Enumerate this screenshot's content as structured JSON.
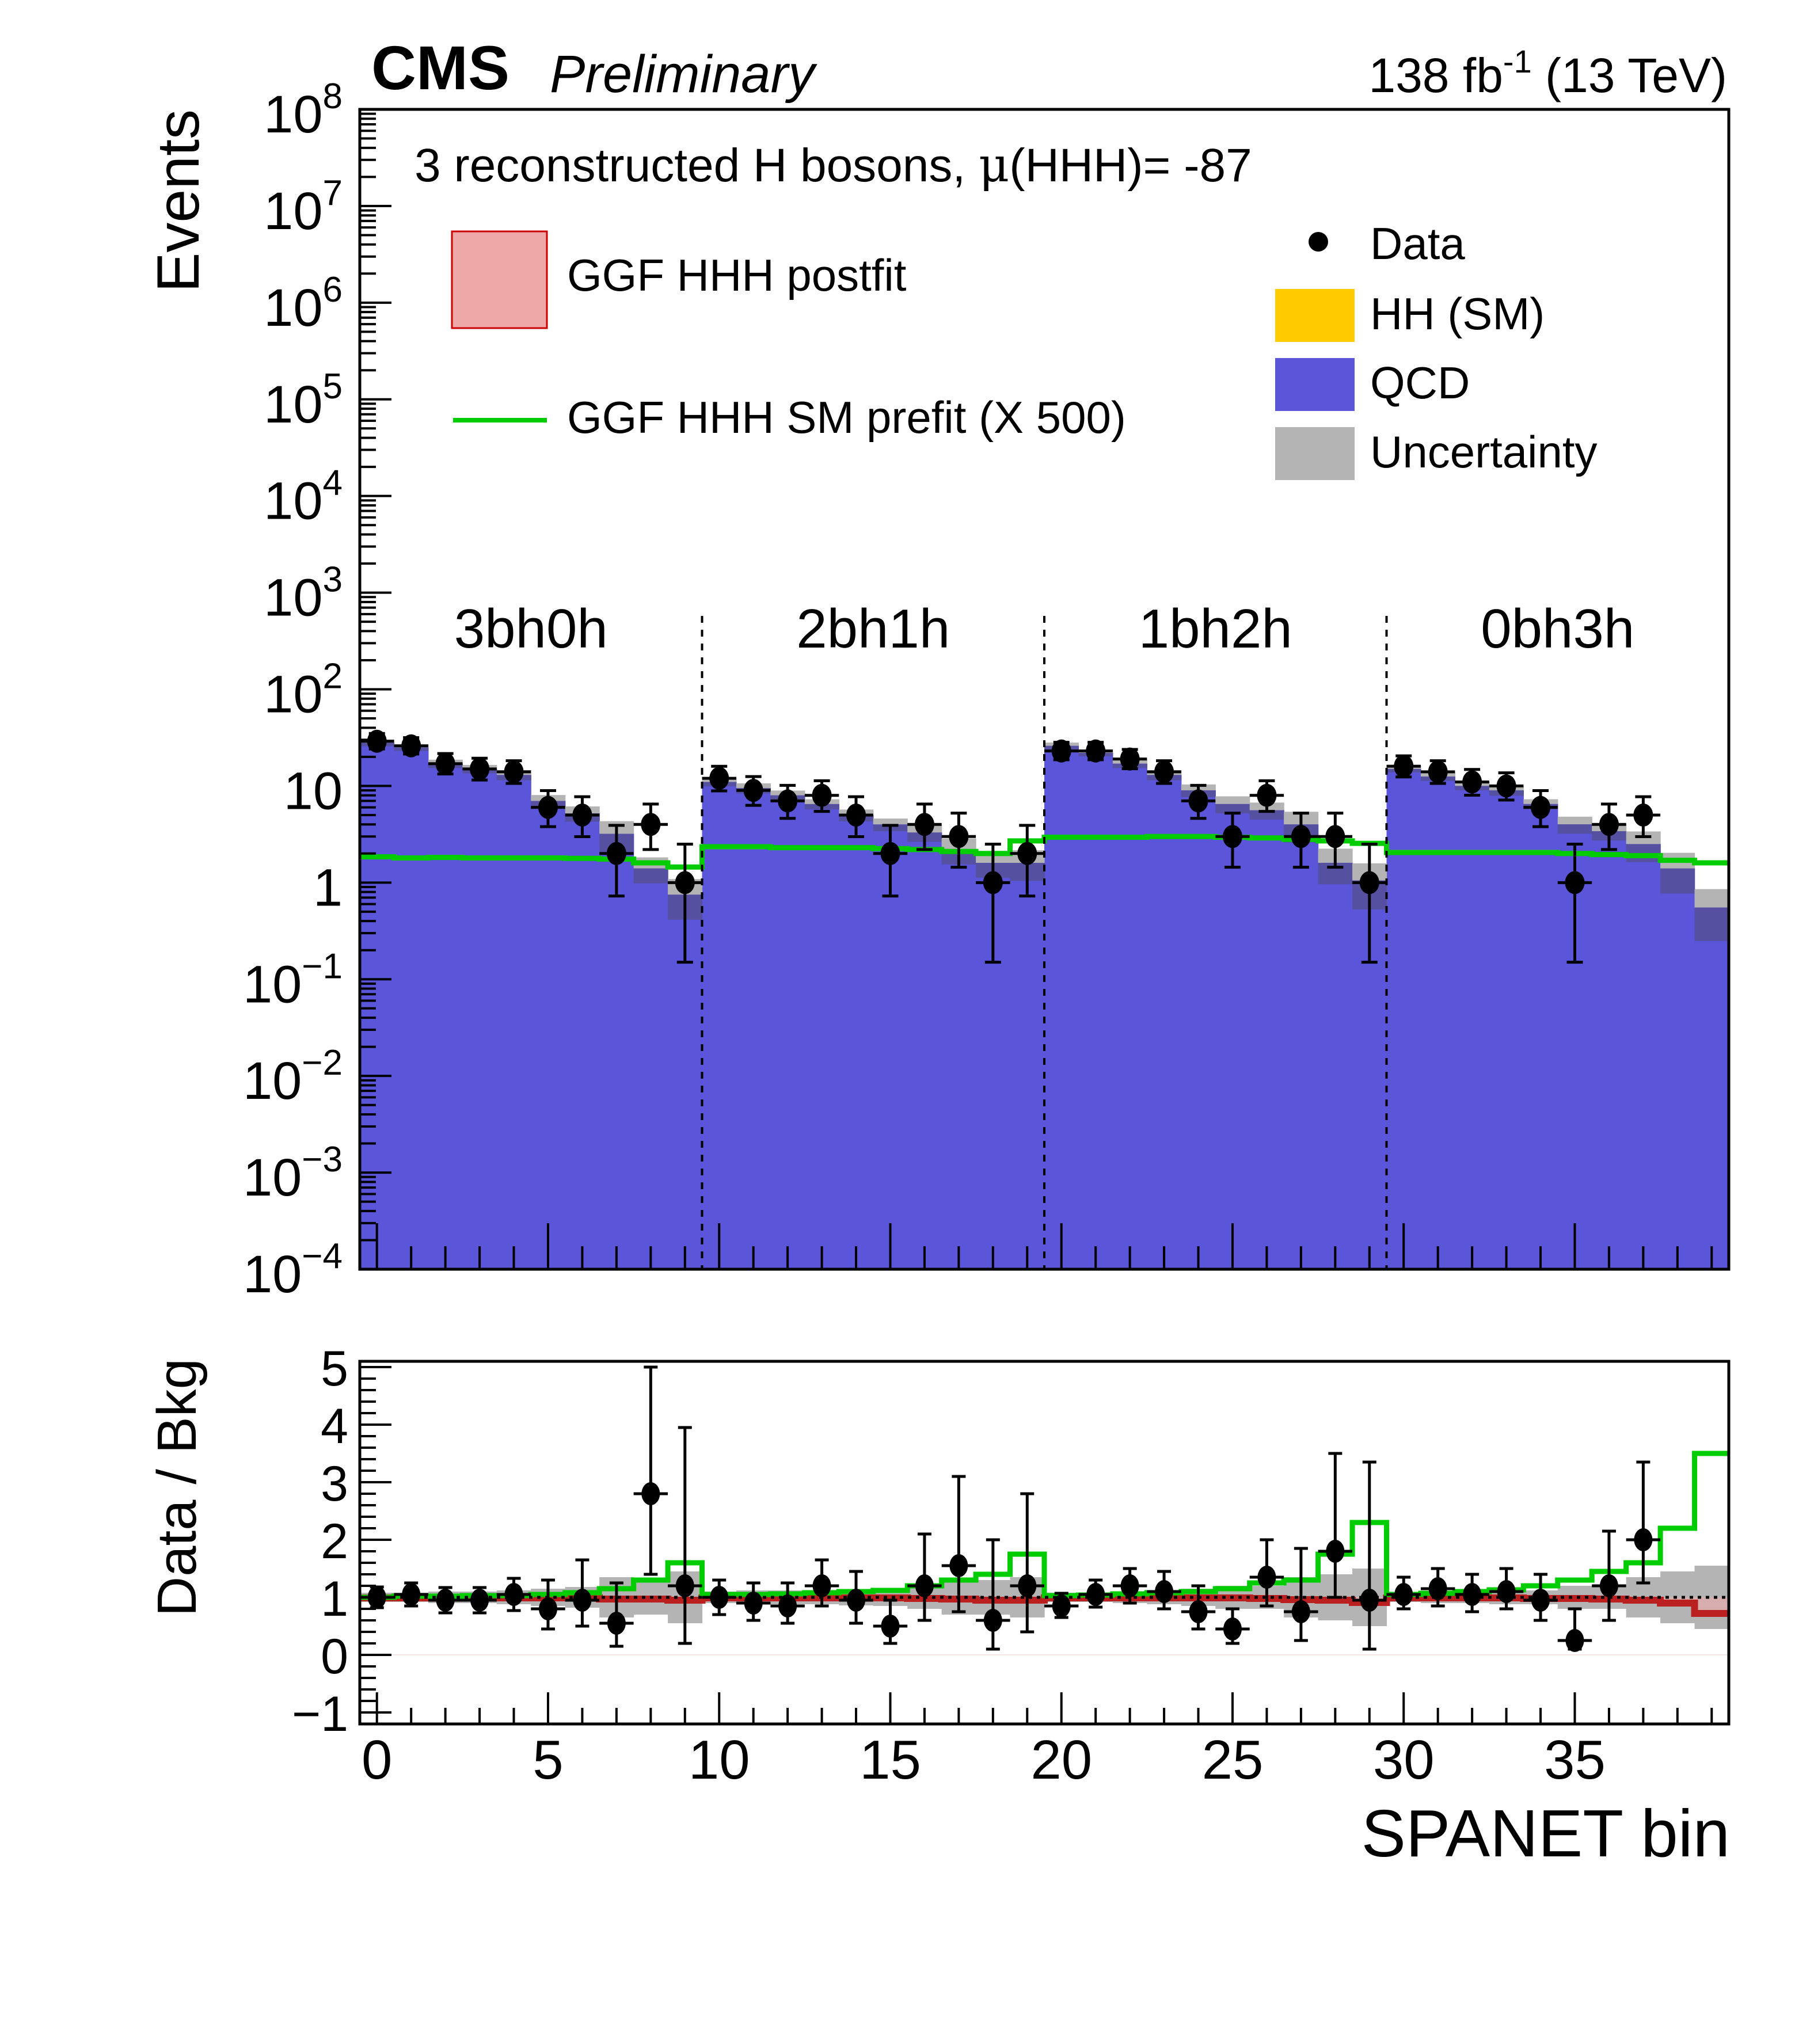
{
  "header": {
    "experiment": "CMS",
    "status": "Preliminary",
    "lumi_prefix": "138 fb",
    "lumi_exponent": "-1",
    "lumi_suffix": " (13 TeV)"
  },
  "chart_data": [
    {
      "type": "bar",
      "panel": "main",
      "title": "3 reconstructed H bosons, μ(HHH)= -87",
      "xlabel": "SPANET bin",
      "ylabel": "Events",
      "yscale": "log",
      "ylim": [
        0.0001,
        100000000
      ],
      "xlim": [
        -0.5,
        39.5
      ],
      "ytick_labels": [
        "10^-4",
        "10^-3",
        "10^-2",
        "10^-1",
        "1",
        "10",
        "10^2",
        "10^3",
        "10^4",
        "10^5",
        "10^6",
        "10^7",
        "10^8"
      ],
      "region_labels": [
        {
          "label": "3bh0h",
          "bins": [
            0,
            9
          ]
        },
        {
          "label": "2bh1h",
          "bins": [
            10,
            19
          ]
        },
        {
          "label": "1bh2h",
          "bins": [
            20,
            29
          ]
        },
        {
          "label": "0bh3h",
          "bins": [
            30,
            39
          ]
        }
      ],
      "region_boundaries": [
        9.5,
        19.5,
        29.5
      ],
      "x": [
        0,
        1,
        2,
        3,
        4,
        5,
        6,
        7,
        8,
        9,
        10,
        11,
        12,
        13,
        14,
        15,
        16,
        17,
        18,
        19,
        20,
        21,
        22,
        23,
        24,
        25,
        26,
        27,
        28,
        29,
        30,
        31,
        32,
        33,
        34,
        35,
        36,
        37,
        38,
        39
      ],
      "series": [
        {
          "name": "HH (SM)",
          "kind": "stack",
          "color": "#ffcc00",
          "values": [
            0.0035,
            0.0045,
            0.006,
            0.0056,
            0.0026,
            0.003,
            0.0035,
            0.0017,
            0.0025,
            0.0009,
            0.0045,
            0.005,
            0.0026,
            0.0032,
            0.0026,
            0.0012,
            0.0019,
            0.0024,
            0.0012,
            0.0009,
            0.02,
            0.003,
            0.019,
            0.0055,
            0.011,
            0.008,
            0.0065,
            0.0042,
            0.0035,
            0.0048,
            0.017,
            0.016,
            0.012,
            0.013,
            0.009,
            0.0095,
            0.0058,
            0.0063,
            0.0019,
            0.0025
          ]
        },
        {
          "name": "QCD",
          "kind": "stack",
          "color": "#5a55d9",
          "values": [
            28,
            25,
            17,
            15,
            13,
            7,
            5.2,
            3.2,
            1.4,
            0.75,
            11,
            9.5,
            8,
            6.5,
            5,
            4,
            3.3,
            2.2,
            1.6,
            1.6,
            26,
            22,
            17,
            13,
            9,
            6.5,
            5.6,
            4,
            1.6,
            1.05,
            15,
            12.5,
            10,
            9,
            6.5,
            4,
            3.4,
            2.5,
            1.4,
            0.55
          ]
        },
        {
          "name": "Uncertainty",
          "kind": "band",
          "color": "#b4b4b4",
          "rel_unc": [
            0.08,
            0.08,
            0.1,
            0.1,
            0.12,
            0.15,
            0.18,
            0.35,
            0.3,
            0.45,
            0.1,
            0.12,
            0.12,
            0.12,
            0.14,
            0.15,
            0.2,
            0.3,
            0.3,
            0.35,
            0.08,
            0.08,
            0.1,
            0.12,
            0.15,
            0.2,
            0.2,
            0.35,
            0.4,
            0.5,
            0.08,
            0.1,
            0.1,
            0.12,
            0.12,
            0.2,
            0.2,
            0.35,
            0.45,
            0.55
          ]
        },
        {
          "name": "GGF HHH SM prefit (X 500)",
          "kind": "line",
          "color": "#00cc00",
          "values": [
            1.85,
            1.8,
            1.82,
            1.8,
            1.8,
            1.8,
            1.78,
            1.75,
            1.6,
            1.45,
            2.35,
            2.35,
            2.3,
            2.3,
            2.3,
            2.25,
            2.2,
            2.1,
            2.0,
            2.7,
            2.95,
            2.95,
            2.95,
            3.0,
            3.0,
            2.95,
            2.9,
            2.8,
            2.7,
            2.55,
            2.05,
            2.05,
            2.05,
            2.05,
            2.05,
            2.0,
            1.95,
            1.9,
            1.7,
            1.6
          ]
        },
        {
          "name": "Data",
          "kind": "points",
          "color": "#000000",
          "values": [
            29,
            26,
            17,
            15,
            14,
            6,
            5,
            2,
            4,
            1,
            12,
            9,
            7,
            8,
            5,
            2,
            4,
            3,
            1,
            2,
            23,
            23,
            19,
            14,
            7,
            3,
            8,
            3,
            3,
            1,
            16,
            14,
            11,
            10,
            6,
            1,
            4,
            5,
            null,
            null
          ]
        }
      ],
      "legend": [
        {
          "label": "GGF HHH postfit",
          "swatch": "box",
          "color": "#eea8a8",
          "border": "#cc0000"
        },
        {
          "label": "GGF HHH SM prefit (X 500)",
          "swatch": "line",
          "color": "#00cc00"
        },
        {
          "label": "Data",
          "swatch": "marker",
          "color": "#000000"
        },
        {
          "label": "HH (SM)",
          "swatch": "box",
          "color": "#ffcc00"
        },
        {
          "label": "QCD",
          "swatch": "box",
          "color": "#5a55d9"
        },
        {
          "label": "Uncertainty",
          "swatch": "box",
          "color": "#b4b4b4"
        }
      ],
      "legend_position": "top-right",
      "grid": false
    },
    {
      "type": "scatter",
      "panel": "ratio",
      "ylabel": "Data / Bkg",
      "xlabel": "SPANET bin",
      "ylim": [
        -1.2,
        5.1
      ],
      "ytick_labels": [
        "−1",
        "0",
        "1",
        "2",
        "3",
        "4",
        "5"
      ],
      "xtick_labels": [
        "0",
        "5",
        "10",
        "15",
        "20",
        "25",
        "30",
        "35"
      ],
      "reference_line": 1,
      "series": [
        {
          "name": "Data / Bkg",
          "color": "#000000",
          "values": [
            1.0,
            1.05,
            0.95,
            0.95,
            1.05,
            0.8,
            0.95,
            0.55,
            2.8,
            1.2,
            1.0,
            0.9,
            0.85,
            1.2,
            0.95,
            0.5,
            1.2,
            1.55,
            0.6,
            1.2,
            0.85,
            1.05,
            1.2,
            1.1,
            0.75,
            0.45,
            1.35,
            0.75,
            1.8,
            0.95,
            1.05,
            1.15,
            1.05,
            1.1,
            0.95,
            0.25,
            1.2,
            2.0,
            null,
            null
          ],
          "err_up": [
            0.18,
            0.2,
            0.22,
            0.22,
            0.28,
            0.5,
            0.7,
            0.7,
            2.2,
            2.75,
            0.3,
            0.35,
            0.4,
            0.45,
            0.5,
            0.45,
            0.9,
            1.55,
            1.4,
            1.6,
            0.22,
            0.25,
            0.3,
            0.35,
            0.45,
            0.35,
            0.65,
            1.1,
            1.7,
            2.4,
            0.3,
            0.35,
            0.35,
            0.4,
            0.45,
            0.55,
            0.95,
            1.35,
            0,
            0
          ],
          "err_down": [
            0.18,
            0.2,
            0.22,
            0.22,
            0.28,
            0.35,
            0.45,
            0.4,
            1.4,
            1.0,
            0.3,
            0.3,
            0.3,
            0.35,
            0.4,
            0.3,
            0.6,
            0.8,
            0.5,
            0.8,
            0.2,
            0.22,
            0.3,
            0.3,
            0.3,
            0.25,
            0.5,
            0.5,
            0.8,
            0.85,
            0.25,
            0.3,
            0.3,
            0.3,
            0.35,
            0.15,
            0.6,
            0.75,
            0,
            0
          ]
        },
        {
          "name": "Uncertainty",
          "color": "#b4b4b4",
          "half_width": [
            0.08,
            0.08,
            0.1,
            0.1,
            0.12,
            0.15,
            0.18,
            0.35,
            0.3,
            0.45,
            0.1,
            0.12,
            0.12,
            0.12,
            0.14,
            0.15,
            0.2,
            0.3,
            0.3,
            0.35,
            0.08,
            0.08,
            0.1,
            0.12,
            0.15,
            0.2,
            0.2,
            0.35,
            0.4,
            0.5,
            0.08,
            0.1,
            0.1,
            0.12,
            0.12,
            0.2,
            0.2,
            0.35,
            0.45,
            0.55
          ]
        },
        {
          "name": "GGF HHH postfit",
          "color": "#bb2020",
          "values": [
            0.99,
            0.99,
            0.99,
            0.99,
            0.99,
            0.99,
            0.99,
            0.97,
            0.97,
            0.95,
            0.99,
            0.99,
            0.99,
            0.99,
            0.99,
            0.99,
            0.98,
            0.97,
            0.95,
            0.95,
            0.99,
            0.99,
            0.99,
            0.99,
            0.99,
            0.99,
            0.98,
            0.96,
            0.95,
            0.91,
            0.99,
            0.99,
            0.99,
            0.99,
            0.98,
            0.98,
            0.97,
            0.95,
            0.9,
            0.72
          ]
        },
        {
          "name": "GGF HHH SM prefit (X 500)",
          "color": "#00cc00",
          "values": [
            1.0,
            1.02,
            1.02,
            1.03,
            1.03,
            1.05,
            1.08,
            1.15,
            1.3,
            1.6,
            1.05,
            1.05,
            1.06,
            1.08,
            1.1,
            1.12,
            1.2,
            1.3,
            1.4,
            1.75,
            1.03,
            1.04,
            1.06,
            1.08,
            1.1,
            1.15,
            1.25,
            1.3,
            1.75,
            2.3,
            1.05,
            1.07,
            1.1,
            1.13,
            1.2,
            1.3,
            1.45,
            1.6,
            2.2,
            3.5
          ]
        }
      ]
    }
  ],
  "labels": {
    "title_prefix": "3 reconstructed H bosons, ",
    "title_mu": "μ",
    "title_suffix": "(HHH)= -87",
    "events_axis": "Events",
    "ratio_axis": "Data / Bkg",
    "x_axis": "SPANET bin"
  }
}
